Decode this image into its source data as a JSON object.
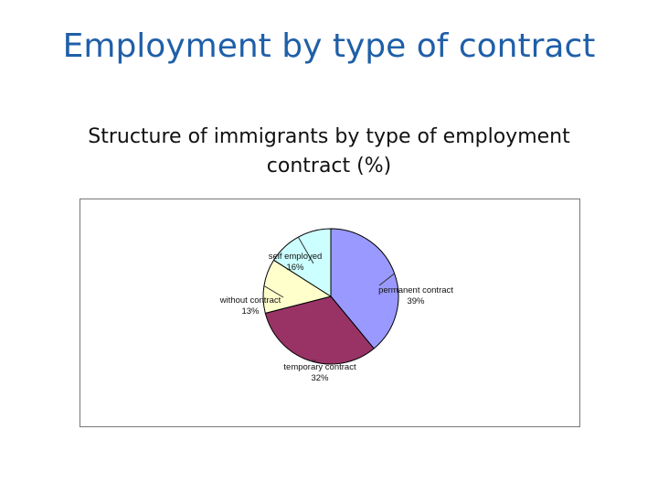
{
  "slide": {
    "title": "Employment by type of contract",
    "subtitle_line1": "Structure of immigrants by type of employment",
    "subtitle_line2": "contract (%)"
  },
  "chart_data": {
    "type": "pie",
    "slices": [
      {
        "name": "permanent contract",
        "value": 39,
        "label": "39%",
        "color": "#9999ff"
      },
      {
        "name": "temporary contract",
        "value": 32,
        "label": "32%",
        "color": "#993366"
      },
      {
        "name": "without contract",
        "value": 13,
        "label": "13%",
        "color": "#ffffcc"
      },
      {
        "name": "self employed",
        "value": 16,
        "label": "16%",
        "color": "#ccffff"
      }
    ],
    "start_angle_deg": 0,
    "direction": "clockwise",
    "legend": "none"
  }
}
